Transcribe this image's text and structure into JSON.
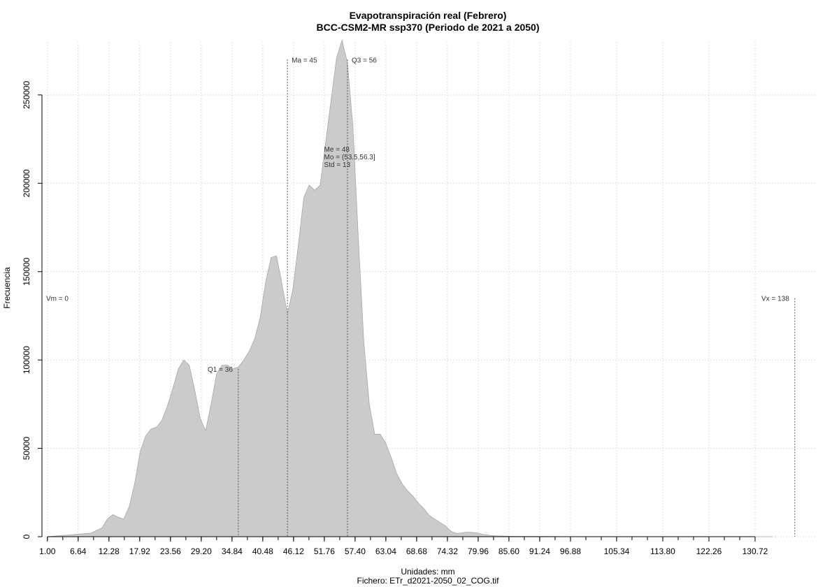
{
  "chart_data": {
    "type": "area",
    "title": "Evapotranspiración real (Febrero)",
    "subtitle": "BCC-CSM2-MR ssp370 (Periodo de 2021 a 2050)",
    "xlabel": "Unidades: mm",
    "ylabel": "Frecuencia",
    "footer": "Fichero: ETr_d2021-2050_02_COG.tif",
    "xlim": [
      0,
      142
    ],
    "ylim": [
      0,
      280000
    ],
    "grid": true,
    "x_tick_labels": [
      "1.00",
      "6.64",
      "12.28",
      "17.92",
      "23.56",
      "29.20",
      "34.84",
      "40.48",
      "46.12",
      "51.76",
      "57.40",
      "63.04",
      "68.68",
      "74.32",
      "79.96",
      "85.60",
      "91.24",
      "96.88",
      "105.34",
      "113.80",
      "122.26",
      "130.72"
    ],
    "x_tick_values": [
      1.0,
      6.64,
      12.28,
      17.92,
      23.56,
      29.2,
      34.84,
      40.48,
      46.12,
      51.76,
      57.4,
      63.04,
      68.68,
      74.32,
      79.96,
      85.6,
      91.24,
      96.88,
      105.34,
      113.8,
      122.26,
      130.72
    ],
    "y_ticks": [
      0,
      50000,
      100000,
      150000,
      200000,
      250000
    ],
    "y_tick_labels": [
      "0",
      "50000",
      "100000",
      "150000",
      "200000",
      "250000"
    ],
    "series": [
      {
        "x": [
          1,
          3,
          5,
          7,
          9,
          11,
          12,
          13,
          14,
          15,
          16,
          17,
          18,
          19,
          20,
          21,
          22,
          23,
          24,
          25,
          26,
          27,
          28,
          29,
          30,
          31,
          32,
          33,
          34,
          35,
          36,
          37,
          38,
          39,
          40,
          41,
          42,
          43,
          44,
          45,
          46,
          47,
          48,
          49,
          50,
          51,
          52,
          53,
          54,
          55,
          56,
          57,
          58,
          59,
          60,
          61,
          62,
          63,
          64,
          65,
          66,
          67,
          68,
          69,
          70,
          71,
          72,
          73,
          74,
          75,
          76,
          77,
          78,
          79,
          80,
          81,
          82,
          83,
          84,
          85,
          86,
          87,
          88,
          90,
          92,
          95,
          100,
          110,
          120,
          130,
          134
        ],
        "y": [
          0,
          500,
          1000,
          1500,
          2000,
          5000,
          10000,
          12500,
          11000,
          10000,
          17000,
          30000,
          48000,
          57000,
          61000,
          62000,
          66000,
          74000,
          84000,
          95000,
          100000,
          97000,
          83000,
          67000,
          60000,
          75000,
          92000,
          97000,
          97000,
          95000,
          96000,
          100000,
          105000,
          112000,
          124000,
          144000,
          158000,
          159000,
          143000,
          126000,
          140000,
          165000,
          192000,
          199000,
          196000,
          199000,
          223000,
          247000,
          271000,
          281000,
          268000,
          232000,
          168000,
          110000,
          75000,
          58000,
          58000,
          53000,
          45000,
          36000,
          30000,
          26000,
          23000,
          19000,
          16000,
          12000,
          10000,
          8000,
          6000,
          3000,
          1800,
          2200,
          2600,
          2400,
          2000,
          1200,
          800,
          500,
          400,
          300,
          200,
          200,
          100,
          100,
          100,
          50,
          50,
          20,
          10,
          5,
          0
        ]
      }
    ],
    "annotations": [
      {
        "label": "Vm = 0",
        "x": 0,
        "y": 135000
      },
      {
        "label": "Q1 = 36",
        "x": 36,
        "y": 95000
      },
      {
        "label": "Ma = 45",
        "x": 45,
        "y": 270000
      },
      {
        "label": "Q3 = 56",
        "x": 56,
        "y": 270000
      },
      {
        "label": "Vx = 138",
        "x": 138,
        "y": 135000
      }
    ],
    "stats": [
      "Me = 48",
      "Mo = (53.5,56.3]",
      "Std = 13"
    ]
  }
}
